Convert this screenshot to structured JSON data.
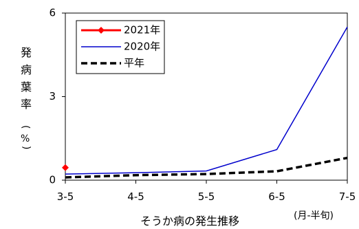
{
  "chart_data": {
    "type": "line",
    "categories": [
      "3-5",
      "4-5",
      "5-5",
      "6-5",
      "7-5"
    ],
    "xlabel": "そうか病の発生推移",
    "x_unit": "(月-半旬)",
    "ylabel_chars": [
      "発",
      "病",
      "葉",
      "率"
    ],
    "ylabel_unit": "%",
    "ylabel_open": "(",
    "ylabel_close": ")",
    "ylim": [
      0,
      6
    ],
    "yticks": [
      0,
      3,
      6
    ],
    "legend_position": "top-left",
    "series": [
      {
        "name": "2021年",
        "color": "#ff0000",
        "style": "solid-diamond",
        "values": [
          0.45,
          null,
          null,
          null,
          null
        ]
      },
      {
        "name": "2020年",
        "color": "#0000cc",
        "style": "solid",
        "values": [
          0.22,
          0.27,
          0.33,
          1.1,
          5.5
        ]
      },
      {
        "name": "平年",
        "color": "#000000",
        "style": "dashed",
        "values": [
          0.1,
          0.18,
          0.22,
          0.32,
          0.8
        ]
      }
    ]
  }
}
